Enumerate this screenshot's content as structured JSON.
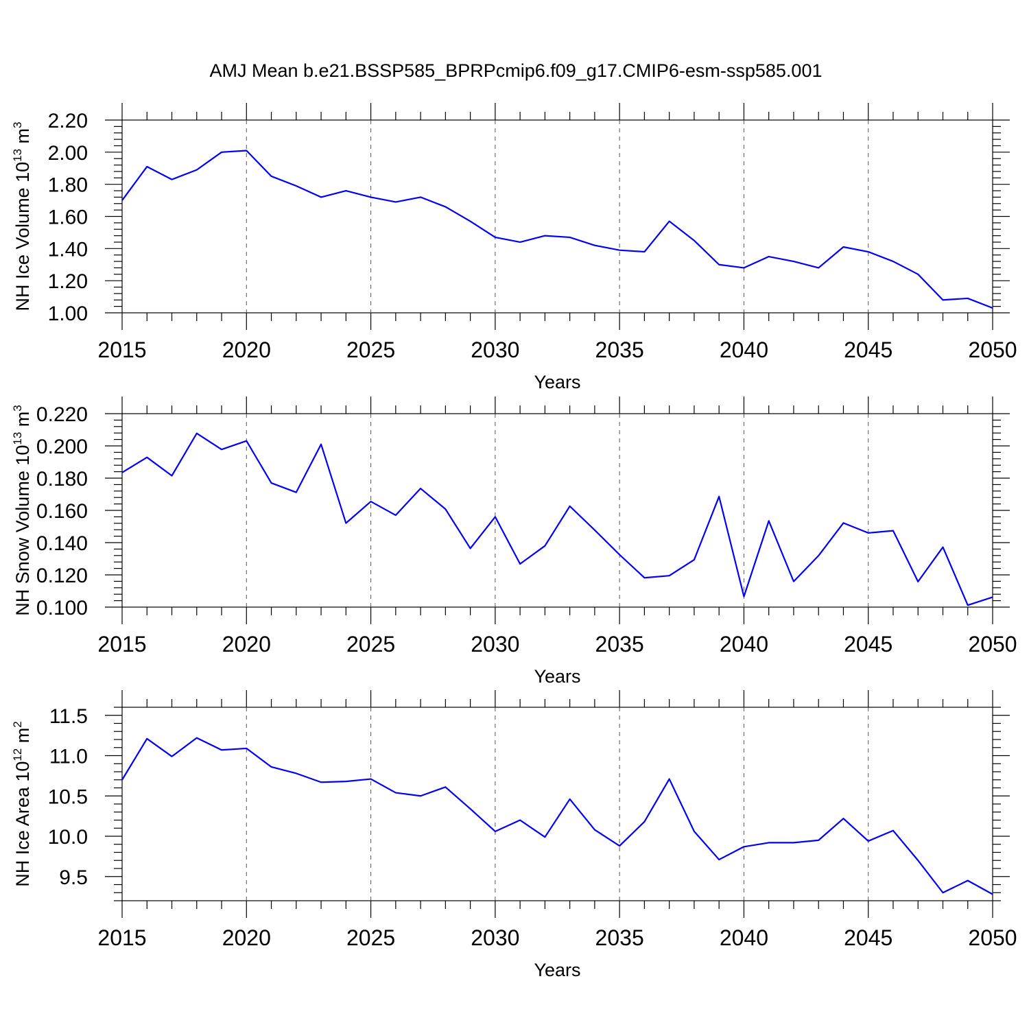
{
  "title": "AMJ Mean b.e21.BSSP585_BPRPcmip6.f09_g17.CMIP6-esm-ssp585.001",
  "chart_data": [
    {
      "type": "line",
      "title": "AMJ Mean b.e21.BSSP585_BPRPcmip6.f09_g17.CMIP6-esm-ssp585.001",
      "xlabel": "Years",
      "ylabel_main": "NH Ice Volume 10",
      "ylabel_exp": "13",
      "ylabel_unit": "m",
      "ylabel_unit_exp": "3",
      "xlim": [
        2015,
        2050
      ],
      "ylim": [
        1.0,
        2.2
      ],
      "x_ticks": [
        2015,
        2020,
        2025,
        2030,
        2035,
        2040,
        2045,
        2050
      ],
      "x_tick_labels": [
        "2015",
        "2020",
        "2025",
        "2030",
        "2035",
        "2040",
        "2045",
        "2050"
      ],
      "y_ticks": [
        1.0,
        1.2,
        1.4,
        1.6,
        1.8,
        2.0,
        2.2
      ],
      "y_tick_labels": [
        "1.00",
        "1.20",
        "1.40",
        "1.60",
        "1.80",
        "2.00",
        "2.20"
      ],
      "grid": "vertical dashed at major x ticks",
      "series": [
        {
          "name": "NH Ice Volume",
          "color": "#0000ff",
          "x": [
            2015,
            2016,
            2017,
            2018,
            2019,
            2020,
            2021,
            2022,
            2023,
            2024,
            2025,
            2026,
            2027,
            2028,
            2029,
            2030,
            2031,
            2032,
            2033,
            2034,
            2035,
            2036,
            2037,
            2038,
            2039,
            2040,
            2041,
            2042,
            2043,
            2044,
            2045,
            2046,
            2047,
            2048,
            2049,
            2050
          ],
          "values": [
            1.7,
            1.91,
            1.83,
            1.89,
            2.0,
            2.01,
            1.85,
            1.79,
            1.72,
            1.76,
            1.72,
            1.69,
            1.72,
            1.66,
            1.57,
            1.47,
            1.44,
            1.48,
            1.47,
            1.42,
            1.39,
            1.38,
            1.57,
            1.45,
            1.3,
            1.28,
            1.35,
            1.32,
            1.28,
            1.41,
            1.38,
            1.32,
            1.24,
            1.08,
            1.09,
            1.03
          ]
        }
      ]
    },
    {
      "type": "line",
      "title": "",
      "xlabel": "Years",
      "ylabel_main": "NH Snow Volume 10",
      "ylabel_exp": "13",
      "ylabel_unit": "m",
      "ylabel_unit_exp": "3",
      "xlim": [
        2015,
        2050
      ],
      "ylim": [
        0.1,
        0.22
      ],
      "x_ticks": [
        2015,
        2020,
        2025,
        2030,
        2035,
        2040,
        2045,
        2050
      ],
      "x_tick_labels": [
        "2015",
        "2020",
        "2025",
        "2030",
        "2035",
        "2040",
        "2045",
        "2050"
      ],
      "y_ticks": [
        0.1,
        0.12,
        0.14,
        0.16,
        0.18,
        0.2,
        0.22
      ],
      "y_tick_labels": [
        "0.100",
        "0.120",
        "0.140",
        "0.160",
        "0.180",
        "0.200",
        "0.220"
      ],
      "grid": "vertical dashed at major x ticks",
      "series": [
        {
          "name": "NH Snow Volume",
          "color": "#0000ff",
          "x": [
            2015,
            2016,
            2017,
            2018,
            2019,
            2020,
            2021,
            2022,
            2023,
            2024,
            2025,
            2026,
            2027,
            2028,
            2029,
            2030,
            2031,
            2032,
            2033,
            2034,
            2035,
            2036,
            2037,
            2038,
            2039,
            2040,
            2041,
            2042,
            2043,
            2044,
            2045,
            2046,
            2047,
            2048,
            2049,
            2050
          ],
          "values": [
            0.1835,
            0.1929,
            0.1815,
            0.2078,
            0.1978,
            0.2031,
            0.177,
            0.1712,
            0.201,
            0.1521,
            0.1655,
            0.157,
            0.1736,
            0.1608,
            0.1364,
            0.156,
            0.1268,
            0.138,
            0.1626,
            0.1478,
            0.1325,
            0.1182,
            0.1195,
            0.1294,
            0.1686,
            0.1066,
            0.1535,
            0.1159,
            0.1319,
            0.1522,
            0.146,
            0.1474,
            0.1158,
            0.1372,
            0.1012,
            0.1062
          ]
        }
      ]
    },
    {
      "type": "line",
      "title": "",
      "xlabel": "Years",
      "ylabel_main": "NH Ice Area 10",
      "ylabel_exp": "12",
      "ylabel_unit": "m",
      "ylabel_unit_exp": "2",
      "xlim": [
        2015,
        2050
      ],
      "ylim": [
        9.2,
        11.6
      ],
      "x_ticks": [
        2015,
        2020,
        2025,
        2030,
        2035,
        2040,
        2045,
        2050
      ],
      "x_tick_labels": [
        "2015",
        "2020",
        "2025",
        "2030",
        "2035",
        "2040",
        "2045",
        "2050"
      ],
      "y_ticks": [
        9.5,
        10.0,
        10.5,
        11.0,
        11.5
      ],
      "y_tick_labels": [
        "9.5",
        "10.0",
        "10.5",
        "11.0",
        "11.5"
      ],
      "grid": "vertical dashed at major x ticks",
      "series": [
        {
          "name": "NH Ice Area",
          "color": "#0000ff",
          "x": [
            2015,
            2016,
            2017,
            2018,
            2019,
            2020,
            2021,
            2022,
            2023,
            2024,
            2025,
            2026,
            2027,
            2028,
            2029,
            2030,
            2031,
            2032,
            2033,
            2034,
            2035,
            2036,
            2037,
            2038,
            2039,
            2040,
            2041,
            2042,
            2043,
            2044,
            2045,
            2046,
            2047,
            2048,
            2049,
            2050
          ],
          "values": [
            10.7,
            11.21,
            10.99,
            11.22,
            11.07,
            11.09,
            10.86,
            10.78,
            10.67,
            10.68,
            10.71,
            10.54,
            10.5,
            10.61,
            10.34,
            10.06,
            10.2,
            9.99,
            10.46,
            10.08,
            9.88,
            10.18,
            10.71,
            10.06,
            9.71,
            9.87,
            9.92,
            9.92,
            9.95,
            10.22,
            9.94,
            10.07,
            9.7,
            9.3,
            9.45,
            9.28
          ]
        }
      ]
    }
  ]
}
